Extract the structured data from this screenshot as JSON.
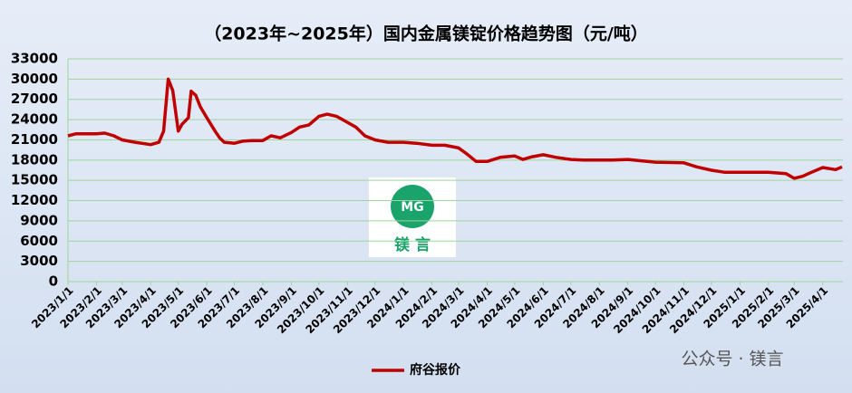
{
  "chart_data": {
    "type": "line",
    "title": "（2023年~2025年）国内金属镁锭价格趋势图（元/吨）",
    "xlim": [
      "2023/1/1",
      "2025/4/23"
    ],
    "xticks": [
      "2023/1/1",
      "2023/2/1",
      "2023/3/1",
      "2023/4/1",
      "2023/5/1",
      "2023/6/1",
      "2023/7/1",
      "2023/8/1",
      "2023/9/1",
      "2023/10/1",
      "2023/11/1",
      "2023/12/1",
      "2024/1/1",
      "2024/2/1",
      "2024/3/1",
      "2024/4/1",
      "2024/5/1",
      "2024/6/1",
      "2024/7/1",
      "2024/8/1",
      "2024/9/1",
      "2024/10/1",
      "2024/11/1",
      "2024/12/1",
      "2025/1/1",
      "2025/2/1",
      "2025/3/1",
      "2025/4/1"
    ],
    "ylim": [
      0,
      33000
    ],
    "yticks": [
      0,
      3000,
      6000,
      9000,
      12000,
      15000,
      18000,
      21000,
      24000,
      27000,
      30000,
      33000
    ],
    "grid": true,
    "legend": "bottom",
    "x": [
      "2023/1/1",
      "2023/1/10",
      "2023/1/20",
      "2023/2/1",
      "2023/2/10",
      "2023/2/20",
      "2023/3/1",
      "2023/3/15",
      "2023/4/1",
      "2023/4/10",
      "2023/4/15",
      "2023/4/20",
      "2023/4/25",
      "2023/5/1",
      "2023/5/5",
      "2023/5/12",
      "2023/5/15",
      "2023/5/20",
      "2023/5/25",
      "2023/6/1",
      "2023/6/10",
      "2023/6/15",
      "2023/6/20",
      "2023/7/1",
      "2023/7/10",
      "2023/7/20",
      "2023/8/1",
      "2023/8/10",
      "2023/8/20",
      "2023/9/1",
      "2023/9/10",
      "2023/9/20",
      "2023/10/1",
      "2023/10/10",
      "2023/10/20",
      "2023/11/1",
      "2023/11/10",
      "2023/11/20",
      "2023/12/1",
      "2023/12/15",
      "2024/1/1",
      "2024/1/15",
      "2024/2/1",
      "2024/2/15",
      "2024/3/1",
      "2024/3/10",
      "2024/3/20",
      "2024/4/1",
      "2024/4/15",
      "2024/5/1",
      "2024/5/10",
      "2024/5/20",
      "2024/6/1",
      "2024/6/15",
      "2024/7/1",
      "2024/7/15",
      "2024/8/1",
      "2024/8/15",
      "2024/9/1",
      "2024/10/1",
      "2024/11/1",
      "2024/11/15",
      "2024/12/1",
      "2024/12/15",
      "2025/1/1",
      "2025/2/1",
      "2025/2/20",
      "2025/3/1",
      "2025/3/10",
      "2025/3/20",
      "2025/4/1",
      "2025/4/15",
      "2025/4/22"
    ],
    "series": [
      {
        "name": "府谷报价",
        "color": "#c00000",
        "values": [
          21600,
          21900,
          21900,
          21900,
          22000,
          21600,
          21000,
          20650,
          20300,
          20650,
          22300,
          30000,
          28300,
          22300,
          23300,
          24300,
          28200,
          27600,
          25900,
          24300,
          22300,
          21300,
          20650,
          20500,
          20800,
          20900,
          20900,
          21600,
          21300,
          22100,
          22900,
          23200,
          24500,
          24800,
          24500,
          23600,
          22900,
          21600,
          21000,
          20650,
          20650,
          20500,
          20200,
          20200,
          19800,
          18900,
          17800,
          17800,
          18400,
          18600,
          18100,
          18500,
          18800,
          18400,
          18100,
          18000,
          18000,
          18000,
          18100,
          17700,
          17600,
          17000,
          16500,
          16200,
          16200,
          16200,
          16000,
          15300,
          15600,
          16200,
          16900,
          16600,
          17000
        ]
      }
    ],
    "annotations": [
      "MG",
      "镁 言",
      "公众号 · 镁言"
    ]
  }
}
